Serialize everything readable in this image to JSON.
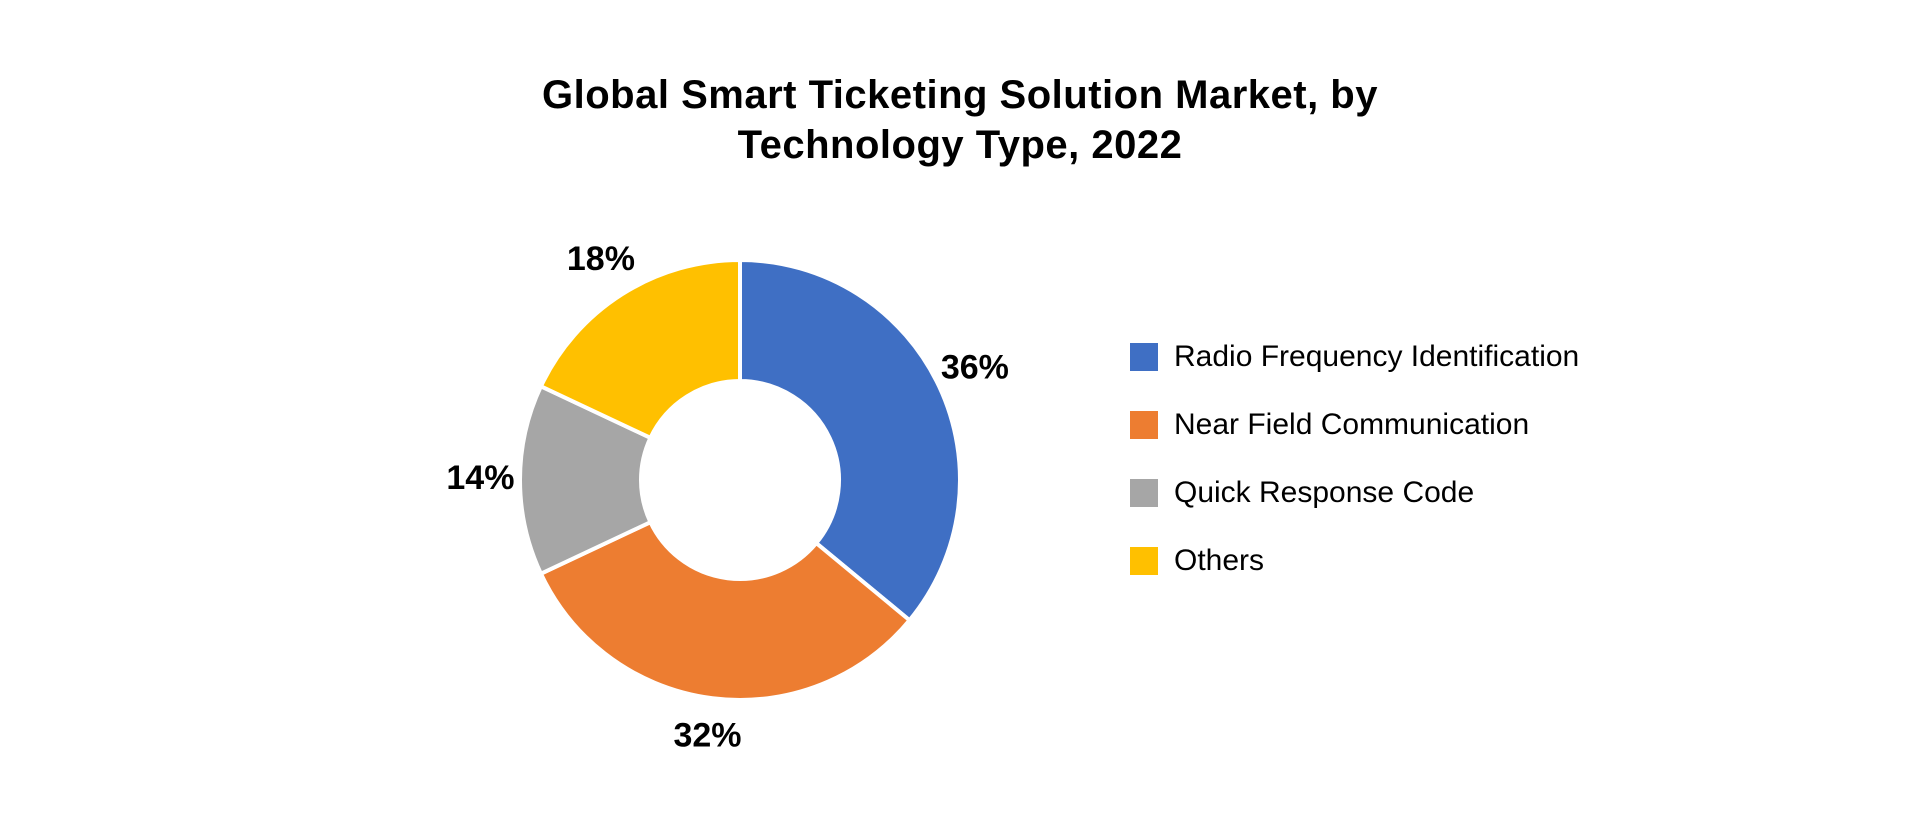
{
  "chart": {
    "type": "donut",
    "title_line1": "Global Smart Ticketing Solution Market, by",
    "title_line2": "Technology Type, 2022",
    "title_fontsize": 40,
    "title_weight": 600,
    "title_color": "#000000",
    "background_color": "#ffffff",
    "inner_radius_ratio": 0.45,
    "outer_radius": 220,
    "start_angle_deg": -90,
    "gap_between_slices": true,
    "slice_border_color": "#ffffff",
    "slice_border_width": 4,
    "label_fontsize": 34,
    "label_weight": 700,
    "label_color": "#000000",
    "label_radius_ratio": 1.08,
    "legend_fontsize": 30,
    "legend_swatch_size": 28,
    "legend_gap": 34,
    "slices": [
      {
        "key": "rfid",
        "label": "Radio Frequency Identification",
        "value": 36,
        "display": "36%",
        "color": "#3f6fc4"
      },
      {
        "key": "nfc",
        "label": "Near Field Communication",
        "value": 32,
        "display": "32%",
        "color": "#ed7d31"
      },
      {
        "key": "qr",
        "label": "Quick Response Code",
        "value": 14,
        "display": "14%",
        "color": "#a6a6a6"
      },
      {
        "key": "others",
        "label": "Others",
        "value": 18,
        "display": "18%",
        "color": "#ffc000"
      }
    ]
  }
}
